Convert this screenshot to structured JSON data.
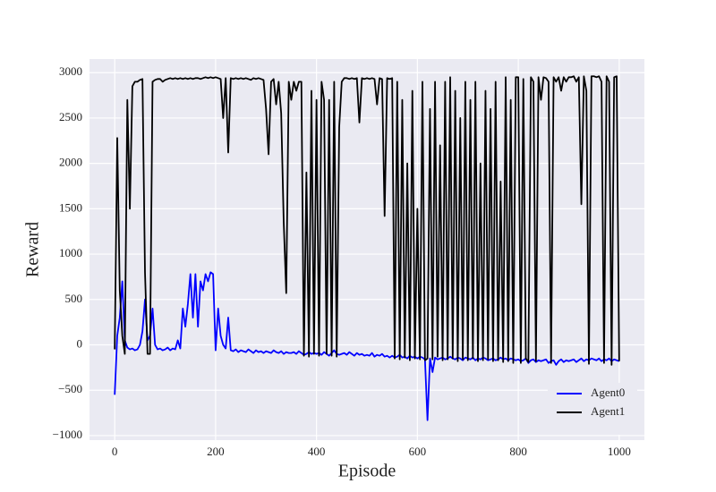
{
  "chart_data": {
    "type": "line",
    "x_label": "Episode",
    "y_label": "Reward",
    "x": [
      0,
      5,
      10,
      15,
      20,
      25,
      30,
      35,
      40,
      45,
      50,
      55,
      60,
      65,
      70,
      75,
      80,
      85,
      90,
      95,
      100,
      105,
      110,
      115,
      120,
      125,
      130,
      135,
      140,
      145,
      150,
      155,
      160,
      165,
      170,
      175,
      180,
      185,
      190,
      195,
      200,
      205,
      210,
      215,
      220,
      225,
      230,
      235,
      240,
      245,
      250,
      255,
      260,
      265,
      270,
      275,
      280,
      285,
      290,
      295,
      300,
      305,
      310,
      315,
      320,
      325,
      330,
      335,
      340,
      345,
      350,
      355,
      360,
      365,
      370,
      375,
      380,
      385,
      390,
      395,
      400,
      405,
      410,
      415,
      420,
      425,
      430,
      435,
      440,
      445,
      450,
      455,
      460,
      465,
      470,
      475,
      480,
      485,
      490,
      495,
      500,
      505,
      510,
      515,
      520,
      525,
      530,
      535,
      540,
      545,
      550,
      555,
      560,
      565,
      570,
      575,
      580,
      585,
      590,
      595,
      600,
      605,
      610,
      615,
      620,
      625,
      630,
      635,
      640,
      645,
      650,
      655,
      660,
      665,
      670,
      675,
      680,
      685,
      690,
      695,
      700,
      705,
      710,
      715,
      720,
      725,
      730,
      735,
      740,
      745,
      750,
      755,
      760,
      765,
      770,
      775,
      780,
      785,
      790,
      795,
      800,
      805,
      810,
      815,
      820,
      825,
      830,
      835,
      840,
      845,
      850,
      855,
      860,
      865,
      870,
      875,
      880,
      885,
      890,
      895,
      900,
      905,
      910,
      915,
      920,
      925,
      930,
      935,
      940,
      945,
      950,
      955,
      960,
      965,
      970,
      975,
      980,
      985,
      990,
      995,
      1000
    ],
    "series": [
      {
        "name": "Agent0",
        "color": "#0000ff",
        "values": [
          -550,
          100,
          300,
          700,
          50,
          -30,
          -50,
          -40,
          -60,
          -50,
          0,
          150,
          500,
          50,
          100,
          400,
          0,
          -50,
          -40,
          -60,
          -50,
          -30,
          -60,
          -40,
          -50,
          50,
          -40,
          400,
          200,
          450,
          780,
          300,
          780,
          200,
          700,
          600,
          780,
          700,
          800,
          780,
          -60,
          400,
          100,
          0,
          -40,
          300,
          -60,
          -70,
          -50,
          -80,
          -60,
          -70,
          -80,
          -50,
          -70,
          -90,
          -60,
          -80,
          -70,
          -90,
          -70,
          -80,
          -90,
          -60,
          -80,
          -90,
          -70,
          -100,
          -80,
          -90,
          -90,
          -80,
          -100,
          -70,
          -90,
          -110,
          -100,
          -80,
          -100,
          -90,
          -100,
          -90,
          -110,
          -80,
          -100,
          -120,
          -90,
          -60,
          -100,
          -110,
          -100,
          -90,
          -110,
          -80,
          -100,
          -120,
          -90,
          -110,
          -100,
          -120,
          -110,
          -120,
          -90,
          -130,
          -110,
          -120,
          -100,
          -130,
          -120,
          -140,
          -120,
          -140,
          -130,
          -110,
          -140,
          -130,
          -150,
          -120,
          -140,
          -130,
          -150,
          -130,
          -140,
          -160,
          -830,
          -150,
          -300,
          -140,
          -160,
          -150,
          -140,
          -160,
          -150,
          -130,
          -150,
          -160,
          -140,
          -150,
          -170,
          -140,
          -150,
          -160,
          -140,
          -170,
          -150,
          -160,
          -140,
          -150,
          -170,
          -160,
          -150,
          -170,
          -160,
          -140,
          -160,
          -150,
          -170,
          -150,
          -160,
          -170,
          -160,
          -180,
          -170,
          -150,
          -200,
          -170,
          -160,
          -190,
          -170,
          -180,
          -170,
          -160,
          -200,
          -180,
          -170,
          -220,
          -180,
          -160,
          -190,
          -170,
          -180,
          -170,
          -160,
          -190,
          -170,
          -150,
          -180,
          -160,
          -170,
          -150,
          -160,
          -170,
          -150,
          -180,
          -160,
          -170,
          -150,
          -180,
          -160,
          -170,
          -180
        ]
      },
      {
        "name": "Agent1",
        "color": "#000000",
        "values": [
          -50,
          2280,
          600,
          100,
          -100,
          2700,
          1500,
          2850,
          2900,
          2900,
          2920,
          2930,
          800,
          -100,
          -100,
          2900,
          2920,
          2930,
          2930,
          2900,
          2920,
          2930,
          2940,
          2930,
          2940,
          2930,
          2940,
          2930,
          2940,
          2930,
          2940,
          2930,
          2940,
          2940,
          2930,
          2940,
          2950,
          2940,
          2950,
          2940,
          2950,
          2940,
          2930,
          2500,
          2940,
          2120,
          2940,
          2930,
          2940,
          2930,
          2940,
          2930,
          2940,
          2930,
          2920,
          2940,
          2930,
          2940,
          2930,
          2920,
          2600,
          2100,
          2900,
          2930,
          2650,
          2900,
          2550,
          1350,
          570,
          2900,
          2700,
          2900,
          2800,
          2900,
          2900,
          -120,
          1900,
          -130,
          2800,
          -100,
          2700,
          -120,
          2900,
          2700,
          -100,
          2700,
          -120,
          2900,
          -130,
          2400,
          2900,
          2940,
          2940,
          2930,
          2940,
          2930,
          2940,
          2450,
          2940,
          2930,
          2940,
          2930,
          2940,
          2930,
          2650,
          2940,
          2930,
          1420,
          2940,
          2930,
          2940,
          -150,
          2900,
          -160,
          2700,
          -140,
          2000,
          -170,
          2800,
          -150,
          1500,
          -160,
          2900,
          -170,
          -150,
          2600,
          -160,
          2900,
          -130,
          2200,
          -170,
          2900,
          -160,
          2950,
          -150,
          2800,
          -180,
          2500,
          -160,
          2900,
          -170,
          2700,
          -150,
          2900,
          -180,
          2000,
          -170,
          2800,
          -160,
          2600,
          -180,
          2900,
          -170,
          1800,
          -190,
          2950,
          -180,
          2700,
          -200,
          2950,
          2950,
          -200,
          2930,
          -150,
          -190,
          2950,
          2900,
          -180,
          2950,
          2700,
          2950,
          2940,
          2900,
          -200,
          2950,
          2900,
          2950,
          2800,
          2950,
          2900,
          2950,
          2950,
          2960,
          2900,
          2950,
          1550,
          2960,
          2800,
          -210,
          2960,
          2960,
          2950,
          2960,
          2900,
          -200,
          2960,
          2900,
          -220,
          2950,
          2960,
          -180
        ]
      }
    ],
    "xlim": [
      -50,
      1050
    ],
    "ylim": [
      -1050,
      3150
    ],
    "xticks": [
      0,
      200,
      400,
      600,
      800,
      1000
    ],
    "yticks": [
      {
        "value": -1000,
        "label": "−1000"
      },
      {
        "value": -500,
        "label": "−500"
      },
      0,
      500,
      1000,
      1500,
      2000,
      2500,
      3000
    ],
    "grid": true,
    "legend": "lower right"
  }
}
